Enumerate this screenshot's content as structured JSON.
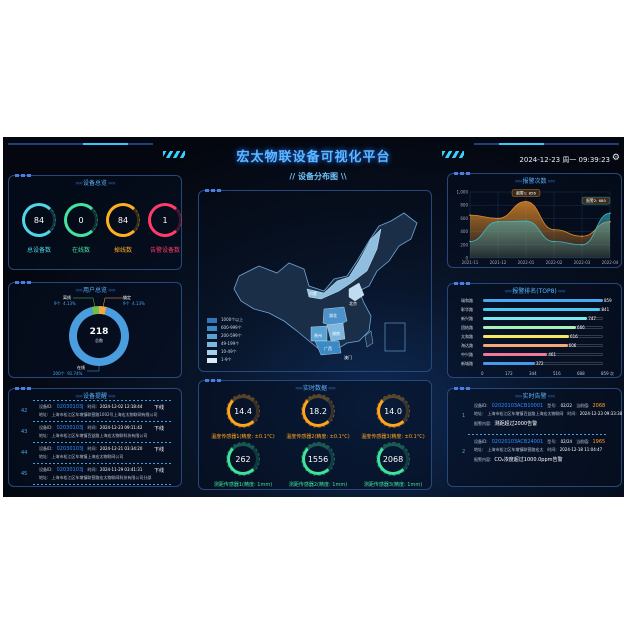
{
  "header": {
    "title": "宏太物联设备可视化平台",
    "datetime": "2024-12-23 周一 09:39:23",
    "settings_icon": "gear-icon"
  },
  "device_overview": {
    "title": "设备总览",
    "items": [
      {
        "value": "84",
        "label": "总设备数",
        "color": "#4fd6e8",
        "fraction": 0.75
      },
      {
        "value": "0",
        "label": "在线数",
        "color": "#46e0a0",
        "fraction": 0.75
      },
      {
        "value": "84",
        "label": "掉线数",
        "color": "#ffb020",
        "fraction": 0.75
      },
      {
        "value": "1",
        "label": "告警设备数",
        "color": "#ff3b6b",
        "fraction": 0.6
      }
    ]
  },
  "user_overview": {
    "title": "用户总览",
    "total": "218",
    "total_label": "总数",
    "segments": [
      {
        "name": "在线",
        "count": "200个",
        "percent": "91.74%",
        "value": 200,
        "color": "#4a9ee0"
      },
      {
        "name": "离线",
        "count": "9个",
        "percent": "4.13%",
        "value": 9,
        "color": "#6fbf4e"
      },
      {
        "name": "锁定",
        "count": "9个",
        "percent": "4.13%",
        "value": 9,
        "color": "#f3a848"
      }
    ]
  },
  "device_alerts": {
    "title": "设备提醒",
    "id_label": "设备ID:",
    "time_label": "时间:",
    "addr_label": "地址:",
    "items": [
      {
        "no": "42",
        "id": "02030103J",
        "time": "2024-12-02 12:18:44",
        "status": "下线",
        "addr": "上海市松江区车墩镇联营路1002号上海宏太物联网有限公司"
      },
      {
        "no": "43",
        "id": "02030103J",
        "time": "2024-12-23 09:11:42",
        "status": "下线",
        "addr": "上海市松江区车墩镇百益路上海宏太物联科技有限公司"
      },
      {
        "no": "44",
        "id": "02030103J",
        "time": "2024-12-21 03:34:20",
        "status": "下线",
        "addr": "上海市松江区车墩镇上海宏太物联网公司"
      },
      {
        "no": "45",
        "id": "02030103J",
        "time": "2024-11-29 03:41:31",
        "status": "下线",
        "addr": "上海市松江区车墩镇联营路宏太物联网科技有限公司分部"
      }
    ]
  },
  "map": {
    "title": "设备分布图",
    "labels": [
      "内蒙",
      "北京",
      "湖北",
      "湖南",
      "贵州",
      "广西",
      "澳门"
    ],
    "legend": [
      {
        "label": "1000个以上",
        "color": "#2f77b8"
      },
      {
        "label": "600-999个",
        "color": "#3b8ac6"
      },
      {
        "label": "200-599个",
        "color": "#5aa2d4"
      },
      {
        "label": "49-199个",
        "color": "#7fb8de"
      },
      {
        "label": "10-49个",
        "color": "#a6cfea"
      },
      {
        "label": "1-9个",
        "color": "#d8ecf8"
      }
    ]
  },
  "realtime_data": {
    "title": "实时数据",
    "temps": [
      {
        "value": "14.4",
        "label": "温度传感器1(精度: ±0.1°C)"
      },
      {
        "value": "18.2",
        "label": "温度传感器2(精度: ±0.1°C)"
      },
      {
        "value": "14.0",
        "label": "温度传感器3(精度: ±0.1°C)"
      }
    ],
    "distances": [
      {
        "value": "262",
        "label": "测距传感器1(精度: 1mm)"
      },
      {
        "value": "1556",
        "label": "测距传感器2(精度: 1mm)"
      },
      {
        "value": "2068",
        "label": "测距传感器3(精度: 1mm)"
      }
    ],
    "temp_color": "#ffa41b",
    "dist_color": "#3fe39a"
  },
  "realtime_alarms": {
    "title": "实时告警",
    "id_label": "设备ID:",
    "model_label": "型号:",
    "current_label": "当前值:",
    "addr_label": "地址:",
    "time_label": "时间:",
    "content_label": "报警内容:",
    "items": [
      {
        "no": "1",
        "id": "02020103ACB10001",
        "model": "02/22",
        "current": "2068",
        "addr": "上海市松江区车墩镇百益路上海宏太物联网",
        "time": "2024-12-23 09:33:38",
        "content": "测距超过2000告警"
      },
      {
        "no": "2",
        "id": "02020103ACB24001",
        "model": "02/24",
        "current": "1965",
        "addr": "上海市松江区车墩镇联营路宏太",
        "time": "2024-12-18 11:04:47",
        "content": "CO₂浓度超过1000.0ppm告警"
      }
    ]
  },
  "chart_data": [
    {
      "type": "area",
      "title": "报警次数",
      "categories": [
        "2021-11",
        "2021-12",
        "2022-01",
        "2022-02",
        "2022-03",
        "2022-04"
      ],
      "ylim": [
        0,
        1000
      ],
      "yticks": [
        "0",
        "200",
        "400",
        "600",
        "800",
        "1,000"
      ],
      "grid": true,
      "series": [
        {
          "name": "报警1",
          "values": [
            650,
            600,
            856,
            430,
            330,
            550
          ],
          "color": "#e08a2a"
        },
        {
          "name": "报警2",
          "values": [
            250,
            550,
            560,
            250,
            200,
            680
          ],
          "color": "#3fb8c8"
        }
      ],
      "tooltips": [
        "报警1: 856",
        "报警2: 680"
      ]
    },
    {
      "type": "bar",
      "orientation": "horizontal",
      "title": "报警排名(TOP8)",
      "categories": [
        "瑞和路",
        "彰华路",
        "新兴路",
        "团结路",
        "太和路",
        "海达路",
        "中兴路",
        "新城路"
      ],
      "values": [
        859,
        841,
        747,
        666,
        616,
        606,
        461,
        372
      ],
      "xlim": [
        0,
        859
      ],
      "xticks": [
        "0",
        "172",
        "344",
        "516",
        "688",
        "859 次"
      ],
      "colors": [
        "#4aa8f0",
        "#4ac8f0",
        "#7de8f0",
        "#a8f0b8",
        "#f8e860",
        "#f8a878",
        "#f07898",
        "#4a98e8"
      ]
    }
  ]
}
